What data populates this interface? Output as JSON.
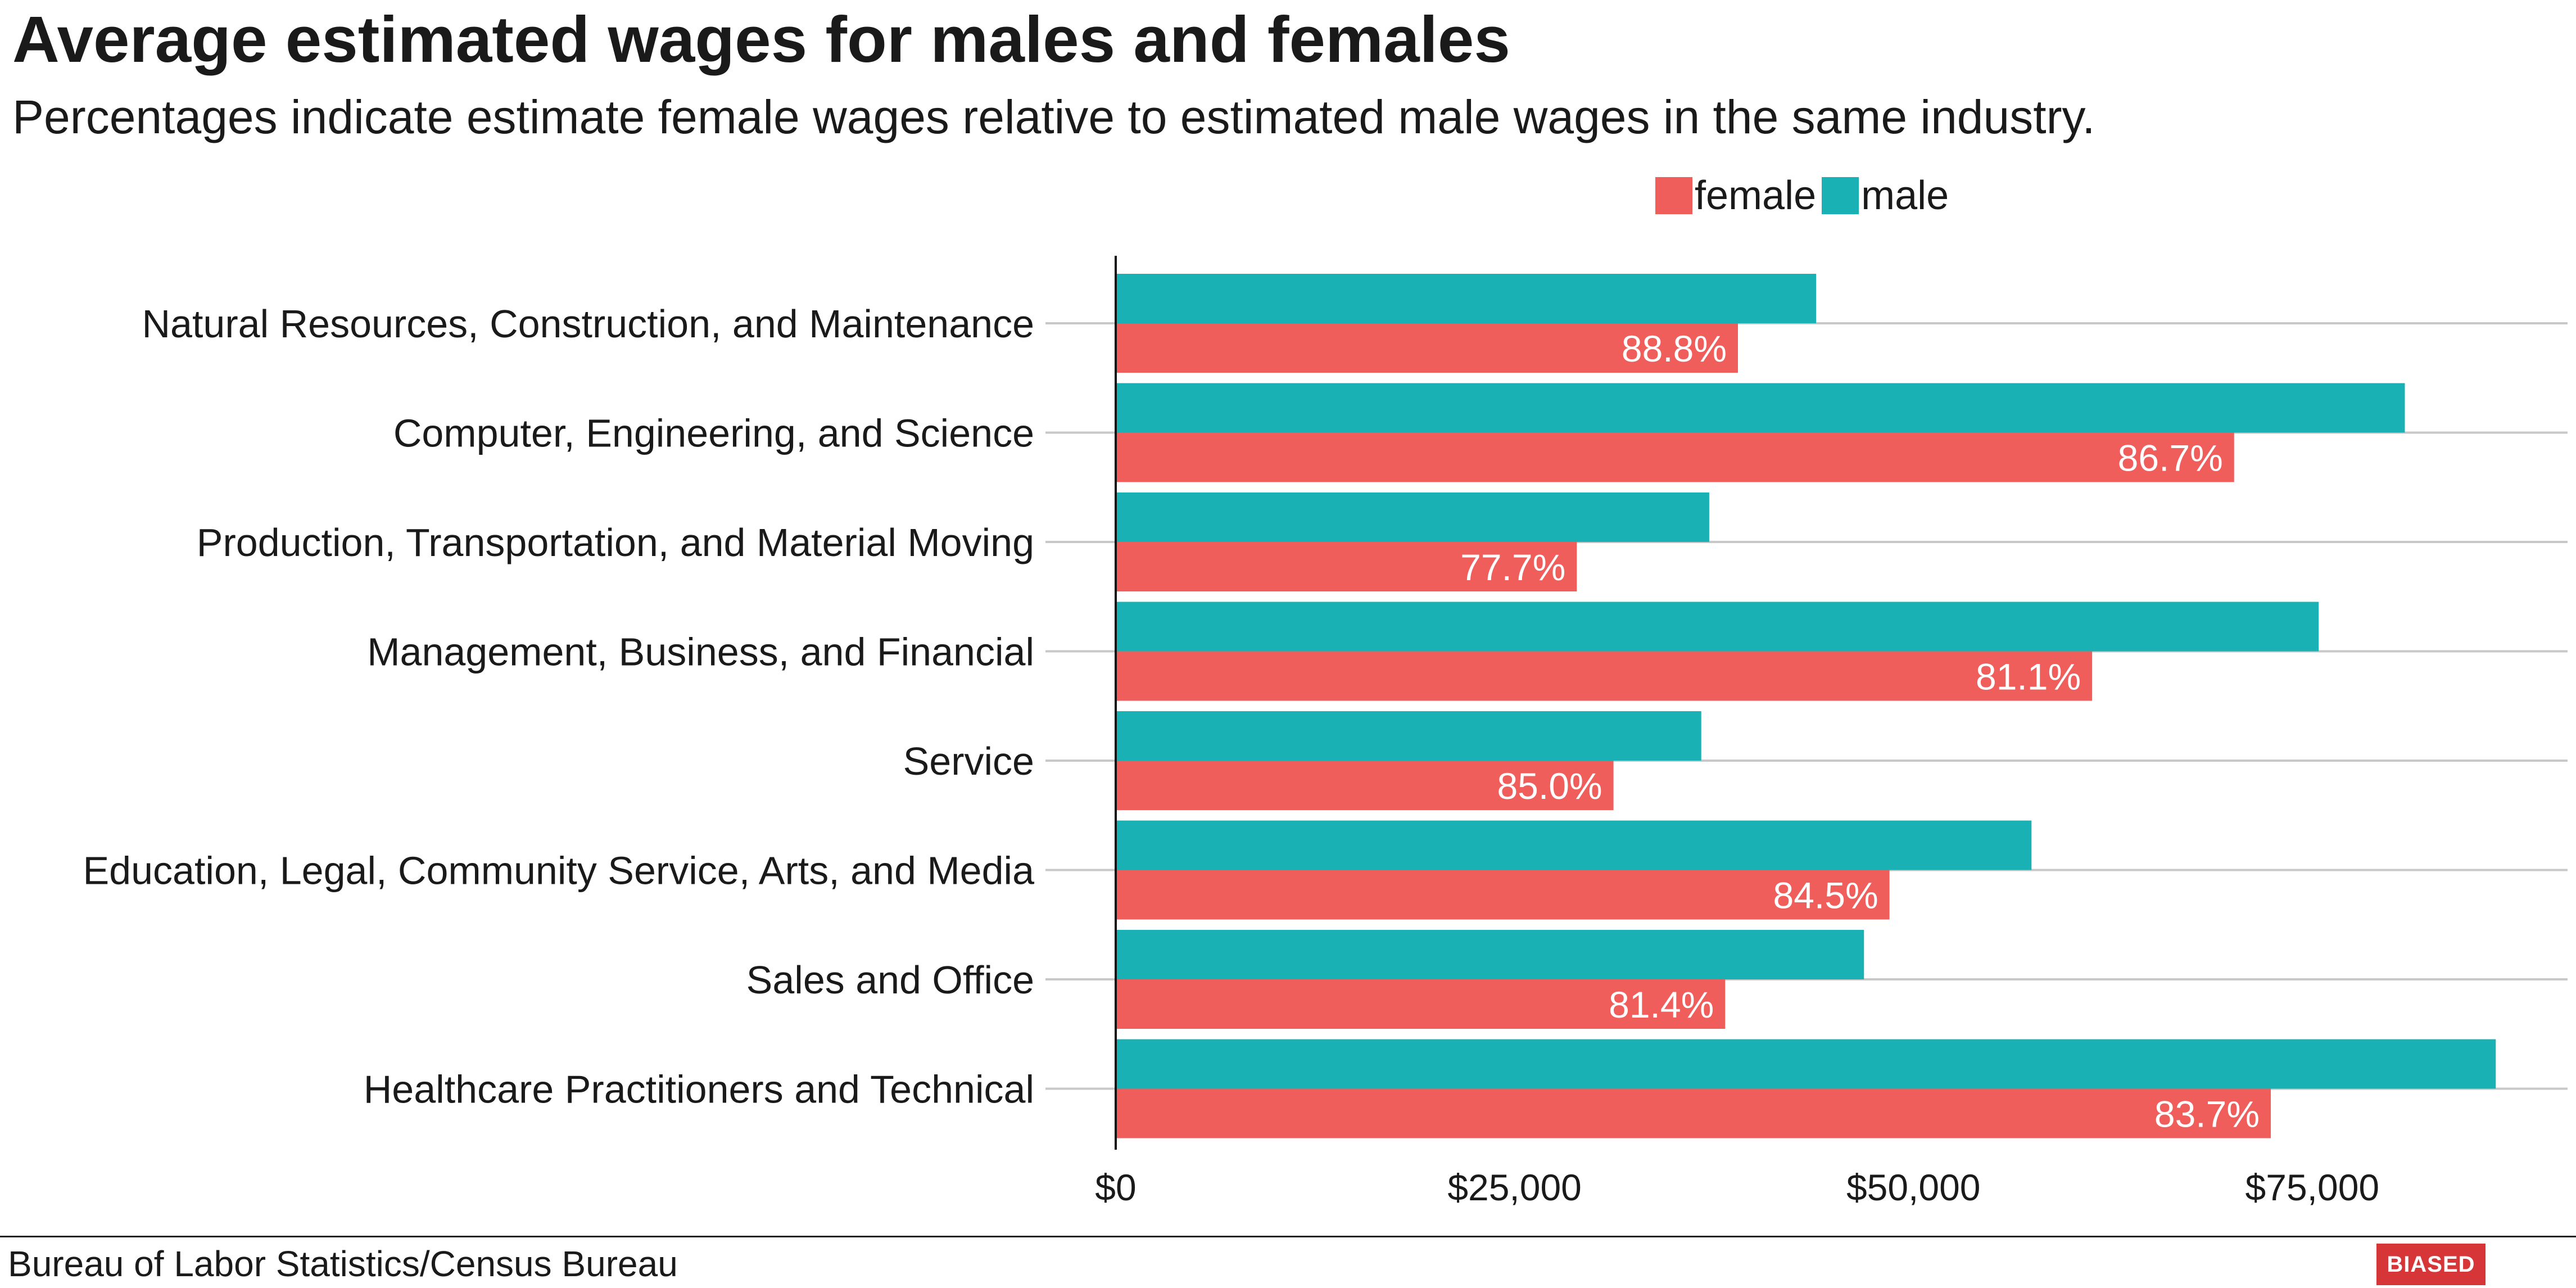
{
  "title": "Average estimated wages for males and females",
  "subtitle": "Percentages indicate estimate female wages relative to estimated male wages in the same industry.",
  "legend": [
    {
      "label": "female",
      "color": "#f05e5c"
    },
    {
      "label": "male",
      "color": "#1ab1b5"
    }
  ],
  "footer": {
    "source": "Bureau of Labor Statistics/Census Bureau",
    "badge": "BIASED"
  },
  "chart_data": {
    "type": "bar",
    "orientation": "horizontal",
    "title": "Average estimated wages for males and females",
    "subtitle": "Percentages indicate estimate female wages relative to estimated male wages in the same industry.",
    "categories": [
      "Natural Resources, Construction, and Maintenance",
      "Computer, Engineering, and Science",
      "Production, Transportation, and Material Moving",
      "Management, Business, and Financial",
      "Service",
      "Education, Legal, Community Service, Arts, and Media",
      "Sales and Office",
      "Healthcare Practitioners and Technical"
    ],
    "series": [
      {
        "name": "male",
        "color": "#1ab1b5",
        "values": [
          43900,
          80800,
          37200,
          75400,
          36700,
          57400,
          46900,
          86500
        ]
      },
      {
        "name": "female",
        "color": "#f05e5c",
        "values": [
          39000,
          70100,
          28900,
          61200,
          31200,
          48500,
          38200,
          72400
        ],
        "labels": [
          "88.8%",
          "86.7%",
          "77.7%",
          "81.1%",
          "85.0%",
          "84.5%",
          "81.4%",
          "83.7%"
        ]
      }
    ],
    "x_ticks": [
      {
        "value": 0,
        "label": "$0"
      },
      {
        "value": 25000,
        "label": "$25,000"
      },
      {
        "value": 50000,
        "label": "$50,000"
      },
      {
        "value": 75000,
        "label": "$75,000"
      }
    ],
    "xlim": [
      0,
      91000
    ],
    "xlabel": "",
    "ylabel": "",
    "grid": "horizontal lines at categories",
    "legend_position": "top"
  }
}
